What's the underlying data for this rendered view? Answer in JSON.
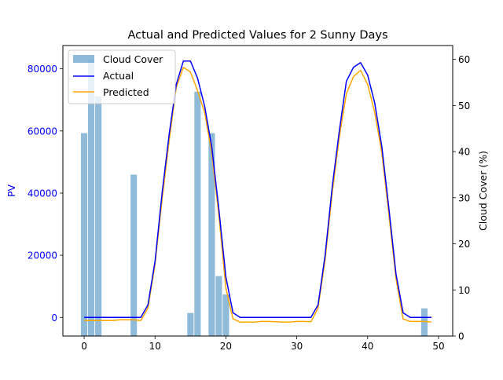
{
  "chart_data": {
    "type": "bar+line",
    "title": "Actual and Predicted Values for 2 Sunny Days",
    "xlabel": "",
    "ylabel_left": "PV",
    "ylabel_right": "Cloud Cover (%)",
    "xlim": [
      -3,
      52
    ],
    "ylim_left": [
      -6000,
      87500
    ],
    "ylim_right": [
      0,
      63
    ],
    "x_ticks": [
      0,
      10,
      20,
      30,
      40,
      50
    ],
    "y_left_ticks": [
      0,
      20000,
      40000,
      60000,
      80000
    ],
    "y_right_ticks": [
      0,
      10,
      20,
      30,
      40,
      50,
      60
    ],
    "legend_position": "upper-left",
    "colors": {
      "cloud": "#1f77b4",
      "actual": "#0000ff",
      "predicted": "#ffa500",
      "left_tick_label": "#0000ff"
    },
    "series": [
      {
        "name": "Cloud Cover",
        "kind": "bar",
        "axis": "right",
        "x": [
          0,
          1,
          2,
          7,
          15,
          16,
          18,
          19,
          20,
          48
        ],
        "values": [
          44,
          60,
          52,
          35,
          5,
          53,
          44,
          13,
          9,
          6
        ]
      },
      {
        "name": "Actual",
        "kind": "line",
        "axis": "left",
        "x": [
          0,
          1,
          2,
          3,
          4,
          5,
          6,
          7,
          8,
          9,
          10,
          11,
          12,
          13,
          14,
          15,
          16,
          17,
          18,
          19,
          20,
          21,
          22,
          23,
          24,
          25,
          26,
          27,
          28,
          29,
          30,
          31,
          32,
          33,
          34,
          35,
          36,
          37,
          38,
          39,
          40,
          41,
          42,
          43,
          44,
          45,
          46,
          47,
          48,
          49
        ],
        "values": [
          0,
          0,
          0,
          0,
          0,
          0,
          0,
          0,
          0,
          4000,
          18000,
          40000,
          59000,
          75000,
          82500,
          82500,
          77000,
          68000,
          55000,
          35000,
          13000,
          1500,
          0,
          0,
          0,
          0,
          0,
          0,
          0,
          0,
          0,
          0,
          0,
          4000,
          20000,
          42000,
          60000,
          76000,
          80500,
          82000,
          78000,
          69000,
          55000,
          35000,
          14000,
          1500,
          0,
          0,
          0,
          0
        ]
      },
      {
        "name": "Predicted",
        "kind": "line",
        "axis": "left",
        "x": [
          0,
          1,
          2,
          3,
          4,
          5,
          6,
          7,
          8,
          9,
          10,
          11,
          12,
          13,
          14,
          15,
          16,
          17,
          18,
          19,
          20,
          21,
          22,
          23,
          24,
          25,
          26,
          27,
          28,
          29,
          30,
          31,
          32,
          33,
          34,
          35,
          36,
          37,
          38,
          39,
          40,
          41,
          42,
          43,
          44,
          45,
          46,
          47,
          48,
          49
        ],
        "values": [
          -1000,
          -1000,
          -1000,
          -1000,
          -1000,
          -800,
          -800,
          -800,
          -1000,
          3000,
          17000,
          38000,
          57000,
          74000,
          80500,
          79000,
          73000,
          66000,
          53000,
          33000,
          9500,
          -500,
          -1500,
          -1500,
          -1500,
          -1300,
          -1300,
          -1400,
          -1500,
          -1500,
          -1300,
          -1300,
          -1400,
          3000,
          18500,
          40000,
          58000,
          72000,
          77500,
          79500,
          75000,
          66000,
          53000,
          33000,
          12500,
          -500,
          -1300,
          -1300,
          -1300,
          -1500
        ]
      }
    ]
  }
}
